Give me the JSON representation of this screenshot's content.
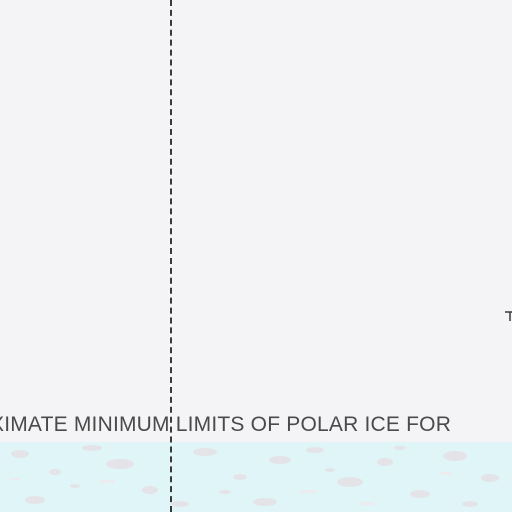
{
  "map": {
    "label_ice_limit": "XIMATE MINIMUM LIMITS OF POLAR ICE FOR",
    "colors": {
      "background": "#f4f4f6",
      "ice_zone": "#dff5f7",
      "ice_speckle": "#e7e7ea",
      "line": "#3a3a3a",
      "label": "#4a4a4a"
    }
  }
}
